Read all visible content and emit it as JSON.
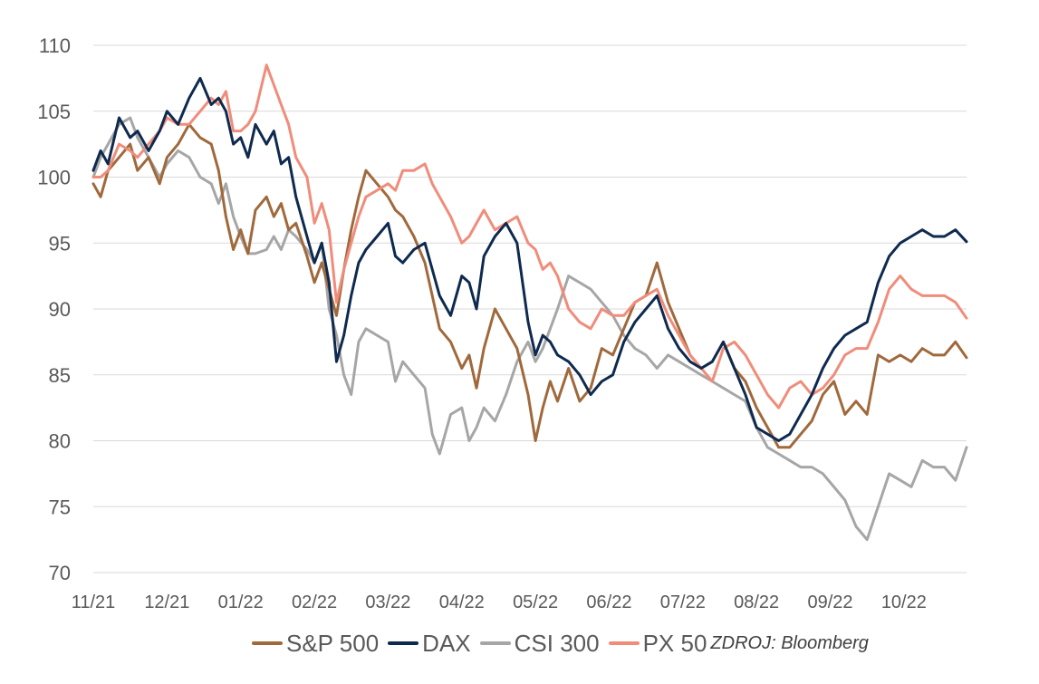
{
  "chart_data": {
    "type": "line",
    "title": "",
    "xlabel": "",
    "ylabel": "",
    "ylim": [
      70,
      110
    ],
    "yticks": [
      70,
      75,
      80,
      85,
      90,
      95,
      100,
      105,
      110
    ],
    "x_tick_labels": [
      "11/21",
      "12/21",
      "01/22",
      "02/22",
      "03/22",
      "04/22",
      "05/22",
      "06/22",
      "07/22",
      "08/22",
      "09/22",
      "10/22"
    ],
    "x_range": [
      0,
      11.85
    ],
    "grid": "horizontal",
    "legend_position": "bottom",
    "source": "ZDROJ: Bloomberg",
    "series": [
      {
        "name": "S&P 500",
        "color": "#a0693c",
        "x": [
          0,
          0.1,
          0.2,
          0.35,
          0.5,
          0.6,
          0.75,
          0.9,
          1.0,
          1.15,
          1.3,
          1.45,
          1.6,
          1.7,
          1.8,
          1.9,
          2.0,
          2.1,
          2.2,
          2.35,
          2.45,
          2.55,
          2.65,
          2.75,
          2.9,
          3.0,
          3.1,
          3.2,
          3.3,
          3.4,
          3.5,
          3.6,
          3.7,
          3.85,
          4.0,
          4.1,
          4.2,
          4.35,
          4.5,
          4.6,
          4.7,
          4.85,
          5.0,
          5.1,
          5.2,
          5.3,
          5.45,
          5.6,
          5.75,
          5.9,
          6.0,
          6.1,
          6.2,
          6.3,
          6.45,
          6.6,
          6.75,
          6.9,
          7.05,
          7.2,
          7.35,
          7.5,
          7.65,
          7.8,
          7.95,
          8.1,
          8.25,
          8.4,
          8.55,
          8.7,
          8.85,
          9.0,
          9.15,
          9.3,
          9.45,
          9.6,
          9.75,
          9.9,
          10.05,
          10.2,
          10.35,
          10.5,
          10.65,
          10.8,
          10.95,
          11.1,
          11.25,
          11.4,
          11.55,
          11.7,
          11.85
        ],
        "values": [
          99.5,
          98.5,
          100.5,
          101.5,
          102.5,
          100.5,
          101.5,
          99.5,
          101.5,
          102.5,
          104.0,
          103.0,
          102.5,
          100.5,
          97.0,
          94.5,
          96.0,
          94.2,
          97.5,
          98.5,
          97.0,
          98.0,
          96.0,
          96.5,
          94.0,
          92.0,
          93.5,
          91.5,
          89.5,
          93.0,
          96.0,
          98.5,
          100.5,
          99.5,
          98.5,
          97.5,
          97.0,
          95.5,
          93.5,
          91.0,
          88.5,
          87.5,
          85.5,
          86.5,
          84.0,
          87.0,
          90.0,
          88.5,
          87.0,
          83.5,
          80.0,
          82.5,
          84.5,
          83.0,
          85.5,
          83.0,
          84.0,
          87.0,
          86.5,
          88.5,
          90.5,
          91.0,
          93.5,
          90.5,
          88.5,
          86.5,
          85.5,
          86.0,
          87.5,
          85.5,
          84.5,
          82.5,
          81.0,
          79.5,
          79.5,
          80.5,
          81.5,
          83.5,
          84.5,
          82.0,
          83.0,
          82.0,
          86.5,
          86.0,
          86.5,
          86.0,
          87.0,
          86.5,
          86.5,
          87.5,
          86.3
        ]
      },
      {
        "name": "DAX",
        "color": "#0f2a4f",
        "x": [
          0,
          0.1,
          0.2,
          0.35,
          0.5,
          0.6,
          0.75,
          0.9,
          1.0,
          1.15,
          1.3,
          1.45,
          1.6,
          1.7,
          1.8,
          1.9,
          2.0,
          2.1,
          2.2,
          2.35,
          2.45,
          2.55,
          2.65,
          2.75,
          2.9,
          3.0,
          3.1,
          3.2,
          3.3,
          3.4,
          3.5,
          3.6,
          3.7,
          3.85,
          4.0,
          4.1,
          4.2,
          4.35,
          4.5,
          4.6,
          4.7,
          4.85,
          5.0,
          5.1,
          5.2,
          5.3,
          5.45,
          5.6,
          5.75,
          5.9,
          6.0,
          6.1,
          6.2,
          6.3,
          6.45,
          6.6,
          6.75,
          6.9,
          7.05,
          7.2,
          7.35,
          7.5,
          7.65,
          7.8,
          7.95,
          8.1,
          8.25,
          8.4,
          8.55,
          8.7,
          8.85,
          9.0,
          9.15,
          9.3,
          9.45,
          9.6,
          9.75,
          9.9,
          10.05,
          10.2,
          10.35,
          10.5,
          10.65,
          10.8,
          10.95,
          11.1,
          11.25,
          11.4,
          11.55,
          11.7,
          11.85
        ],
        "values": [
          100.5,
          102.0,
          101.0,
          104.5,
          103.0,
          103.5,
          102.0,
          103.5,
          105.0,
          104.0,
          106.0,
          107.5,
          105.5,
          106.0,
          105.0,
          102.5,
          103.0,
          101.5,
          104.0,
          102.5,
          103.5,
          101.0,
          101.5,
          98.5,
          95.5,
          93.5,
          95.0,
          92.0,
          86.0,
          88.0,
          91.0,
          93.5,
          94.5,
          95.5,
          96.5,
          94.0,
          93.5,
          94.5,
          95.0,
          93.0,
          91.0,
          89.5,
          92.5,
          92.0,
          90.0,
          94.0,
          95.5,
          96.5,
          95.0,
          89.0,
          86.5,
          88.0,
          87.5,
          86.5,
          86.0,
          85.0,
          83.5,
          84.5,
          85.0,
          87.5,
          89.0,
          90.0,
          91.0,
          88.5,
          87.0,
          86.0,
          85.5,
          86.0,
          87.5,
          85.5,
          83.5,
          81.0,
          80.5,
          80.0,
          80.5,
          82.0,
          83.5,
          85.5,
          87.0,
          88.0,
          88.5,
          89.0,
          92.0,
          94.0,
          95.0,
          95.5,
          96.0,
          95.5,
          95.5,
          96.0,
          95.1
        ]
      },
      {
        "name": "CSI 300",
        "color": "#a6a6a6",
        "x": [
          0,
          0.1,
          0.2,
          0.35,
          0.5,
          0.6,
          0.75,
          0.9,
          1.0,
          1.15,
          1.3,
          1.45,
          1.6,
          1.7,
          1.8,
          1.9,
          2.0,
          2.1,
          2.2,
          2.35,
          2.45,
          2.55,
          2.65,
          2.75,
          2.9,
          3.0,
          3.1,
          3.2,
          3.3,
          3.4,
          3.5,
          3.6,
          3.7,
          3.85,
          4.0,
          4.1,
          4.2,
          4.35,
          4.5,
          4.6,
          4.7,
          4.85,
          5.0,
          5.1,
          5.2,
          5.3,
          5.45,
          5.6,
          5.75,
          5.9,
          6.0,
          6.1,
          6.2,
          6.3,
          6.45,
          6.6,
          6.75,
          6.9,
          7.05,
          7.2,
          7.35,
          7.5,
          7.65,
          7.8,
          7.95,
          8.1,
          8.25,
          8.4,
          8.55,
          8.7,
          8.85,
          9.0,
          9.15,
          9.3,
          9.45,
          9.6,
          9.75,
          9.9,
          10.05,
          10.2,
          10.35,
          10.5,
          10.65,
          10.8,
          10.95,
          11.1,
          11.25,
          11.4,
          11.55,
          11.7,
          11.85
        ],
        "values": [
          100.0,
          101.5,
          102.5,
          104.0,
          104.5,
          103.0,
          101.5,
          100.0,
          101.0,
          102.0,
          101.5,
          100.0,
          99.5,
          98.0,
          99.5,
          97.0,
          95.5,
          94.2,
          94.2,
          94.5,
          95.5,
          94.5,
          96.0,
          95.5,
          94.5,
          93.5,
          95.0,
          90.0,
          88.0,
          85.0,
          83.5,
          87.5,
          88.5,
          88.0,
          87.5,
          84.5,
          86.0,
          85.0,
          84.0,
          80.5,
          79.0,
          82.0,
          82.5,
          80.0,
          81.0,
          82.5,
          81.5,
          83.5,
          86.0,
          87.5,
          86.0,
          87.0,
          88.5,
          90.0,
          92.5,
          92.0,
          91.5,
          90.5,
          89.5,
          88.0,
          87.0,
          86.5,
          85.5,
          86.5,
          86.0,
          85.5,
          85.0,
          84.5,
          84.0,
          83.5,
          83.0,
          81.0,
          79.5,
          79.0,
          78.5,
          78.0,
          78.0,
          77.5,
          76.5,
          75.5,
          73.5,
          72.5,
          75.0,
          77.5,
          77.0,
          76.5,
          78.5,
          78.0,
          78.0,
          77.0,
          79.5
        ]
      },
      {
        "name": "PX 50",
        "color": "#f08c7a",
        "x": [
          0,
          0.1,
          0.2,
          0.35,
          0.5,
          0.6,
          0.75,
          0.9,
          1.0,
          1.15,
          1.3,
          1.45,
          1.6,
          1.7,
          1.8,
          1.9,
          2.0,
          2.1,
          2.2,
          2.35,
          2.45,
          2.55,
          2.65,
          2.75,
          2.9,
          3.0,
          3.1,
          3.2,
          3.3,
          3.4,
          3.5,
          3.6,
          3.7,
          3.85,
          4.0,
          4.1,
          4.2,
          4.35,
          4.5,
          4.6,
          4.7,
          4.85,
          5.0,
          5.1,
          5.2,
          5.3,
          5.45,
          5.6,
          5.75,
          5.9,
          6.0,
          6.1,
          6.2,
          6.3,
          6.45,
          6.6,
          6.75,
          6.9,
          7.05,
          7.2,
          7.35,
          7.5,
          7.65,
          7.8,
          7.95,
          8.1,
          8.25,
          8.4,
          8.55,
          8.7,
          8.85,
          9.0,
          9.15,
          9.3,
          9.45,
          9.6,
          9.75,
          9.9,
          10.05,
          10.2,
          10.35,
          10.5,
          10.65,
          10.8,
          10.95,
          11.1,
          11.25,
          11.4,
          11.55,
          11.7,
          11.85
        ],
        "values": [
          100.0,
          100.0,
          100.5,
          102.5,
          102.0,
          101.5,
          102.5,
          103.5,
          104.5,
          104.0,
          104.0,
          105.0,
          106.0,
          105.5,
          106.5,
          103.5,
          103.5,
          104.0,
          105.0,
          108.5,
          107.0,
          105.5,
          104.0,
          101.5,
          100.0,
          96.5,
          98.0,
          96.0,
          90.5,
          93.0,
          95.0,
          97.0,
          98.5,
          99.0,
          99.5,
          99.0,
          100.5,
          100.5,
          101.0,
          99.5,
          98.5,
          97.0,
          95.0,
          95.5,
          96.5,
          97.5,
          96.0,
          96.5,
          97.0,
          95.0,
          94.5,
          93.0,
          93.5,
          92.5,
          90.0,
          89.0,
          88.5,
          90.0,
          89.5,
          89.5,
          90.5,
          91.0,
          91.5,
          89.5,
          88.0,
          86.5,
          85.5,
          84.5,
          87.0,
          87.5,
          86.5,
          85.0,
          83.5,
          82.5,
          84.0,
          84.5,
          83.5,
          84.0,
          85.0,
          86.5,
          87.0,
          87.0,
          89.0,
          91.5,
          92.5,
          91.5,
          91.0,
          91.0,
          91.0,
          90.5,
          89.3
        ]
      }
    ]
  }
}
